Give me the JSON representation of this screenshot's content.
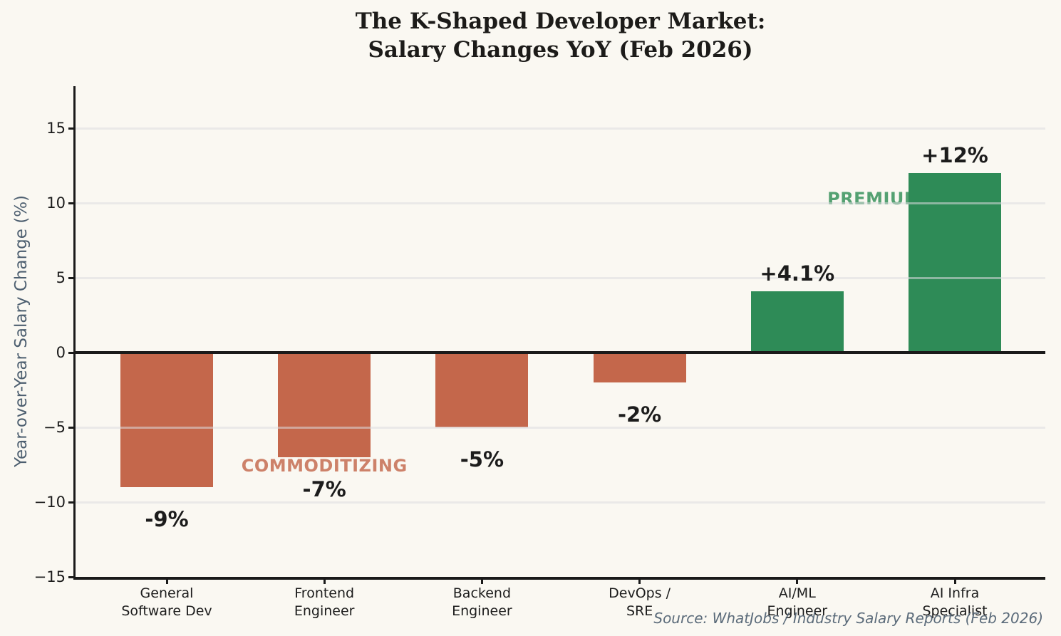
{
  "title": {
    "line1": "The K-Shaped Developer Market:",
    "line2": "Salary Changes YoY (Feb 2026)"
  },
  "source_note": "Source: WhatJobs / Industry Salary Reports (Feb 2026)",
  "colors": {
    "background": "#faf8f2",
    "negative_bar": "#c4674b",
    "positive_bar": "#2e8b57",
    "commoditizing_text": "#cd8169",
    "premium_text": "#54a172",
    "axis": "#1a1a1a",
    "ylabel_text": "#4d5f70",
    "source_text": "#5b6b7a"
  },
  "chart_data": {
    "type": "bar",
    "title": "The K-Shaped Developer Market: Salary Changes YoY (Feb 2026)",
    "xlabel": "",
    "ylabel": "Year-over-Year Salary Change (%)",
    "categories": [
      [
        "General",
        "Software Dev"
      ],
      [
        "Frontend",
        "Engineer"
      ],
      [
        "Backend",
        "Engineer"
      ],
      [
        "DevOps /",
        "SRE"
      ],
      [
        "AI/ML",
        "Engineer"
      ],
      [
        "AI Infra",
        "Specialist"
      ]
    ],
    "values": [
      -9,
      -7,
      -5,
      -2,
      4.1,
      12
    ],
    "bar_labels": [
      "-9%",
      "-7%",
      "-5%",
      "-2%",
      "+4.1%",
      "+12%"
    ],
    "ylim": [
      -15,
      17.8
    ],
    "grid": true,
    "grid_values": [
      15,
      10,
      5,
      -5,
      -10
    ],
    "y_ticks": [
      {
        "value": 15,
        "label": "15"
      },
      {
        "value": 10,
        "label": "10"
      },
      {
        "value": 5,
        "label": "5"
      },
      {
        "value": 0,
        "label": "0"
      },
      {
        "value": -5,
        "label": "−5"
      },
      {
        "value": -10,
        "label": "−10"
      },
      {
        "value": -15,
        "label": "−15"
      }
    ],
    "annotations": [
      {
        "text": "COMMODITIZING",
        "x_index": 1.0,
        "y_value": -7.57,
        "color_key": "commoditizing_text",
        "behind_bars": false
      },
      {
        "text": "PREMIUM",
        "x_index": 4.49,
        "y_value": 10.3,
        "color_key": "premium_text",
        "behind_bars": true
      }
    ],
    "legend": null
  }
}
